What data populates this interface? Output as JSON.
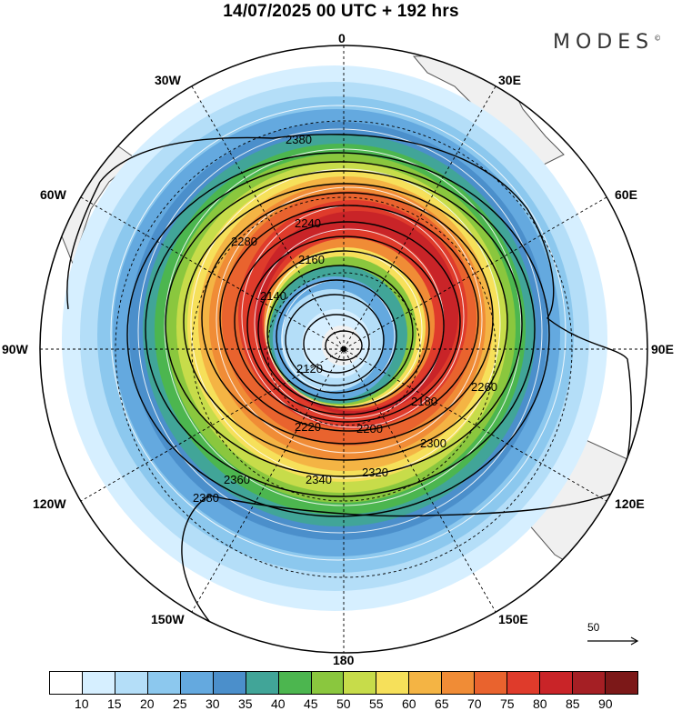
{
  "header": {
    "title": "14/07/2025  00 UTC  + 192 hrs",
    "brand": "MODES",
    "brand_mark": "©"
  },
  "longitude_labels": [
    "0",
    "30E",
    "60E",
    "90E",
    "120E",
    "150E",
    "180",
    "150W",
    "120W",
    "90W",
    "60W",
    "30W"
  ],
  "contours": {
    "labels": [
      "2380",
      "2380",
      "2360",
      "2340",
      "2320",
      "2300",
      "2280",
      "2260",
      "2240",
      "2220",
      "2200",
      "2180",
      "2160",
      "2140",
      "2120"
    ]
  },
  "colorbar": {
    "ticks": [
      "10",
      "15",
      "20",
      "25",
      "30",
      "35",
      "40",
      "45",
      "50",
      "55",
      "60",
      "65",
      "70",
      "75",
      "80",
      "85",
      "90"
    ],
    "colors": [
      "#ffffff",
      "#d6efff",
      "#b4def8",
      "#8cc8ee",
      "#64a9df",
      "#4b8fcb",
      "#41a598",
      "#4cb64f",
      "#8ac73e",
      "#c7dc4a",
      "#f6e05a",
      "#f4b444",
      "#f08c36",
      "#e9632e",
      "#df3b2b",
      "#c92428",
      "#a51f24",
      "#7c1818"
    ]
  },
  "reference_vector": {
    "label": "50"
  }
}
